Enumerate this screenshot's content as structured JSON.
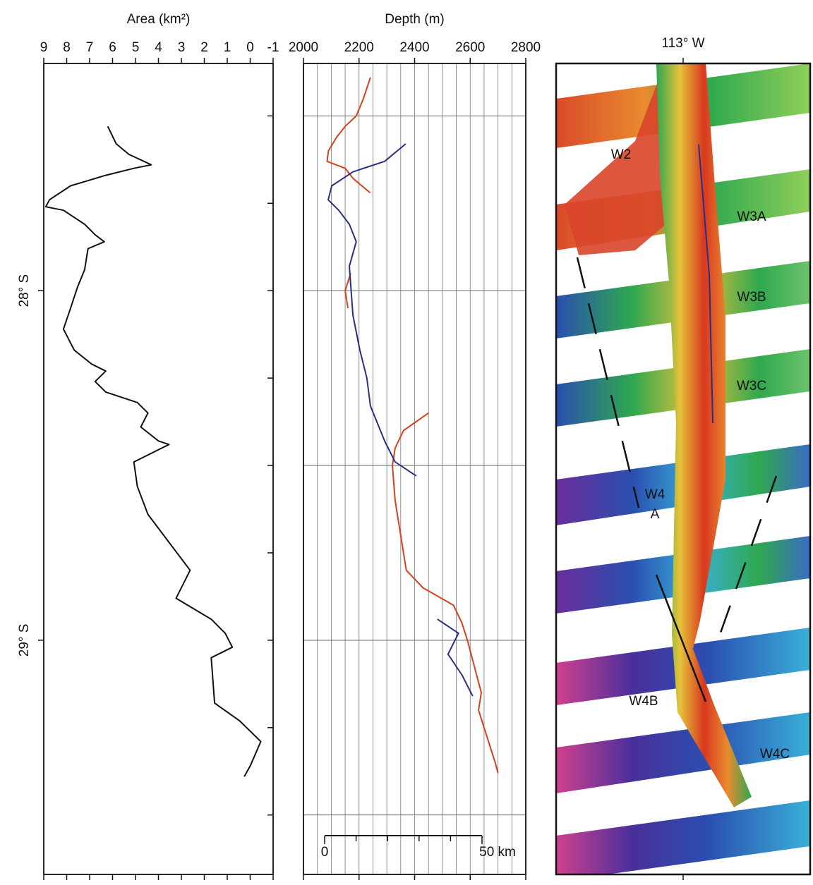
{
  "chart_data": [
    {
      "type": "profile",
      "title": "Area (km²)",
      "xlim": [
        9,
        -1
      ],
      "xticks": [
        9,
        8,
        7,
        6,
        5,
        4,
        3,
        2,
        1,
        0,
        -1
      ],
      "ylim": [
        27.35,
        29.67
      ],
      "yticks": [
        {
          "value": 28,
          "label": "28° S"
        },
        {
          "value": 29,
          "label": "29° S"
        }
      ],
      "yminor_ticks": [
        27.5,
        27.75,
        28,
        28.25,
        28.5,
        28.75,
        29,
        29.25,
        29.5
      ],
      "series": [
        {
          "color": "#111111",
          "lat": [
            27.53,
            27.58,
            27.61,
            27.64,
            27.65,
            27.67,
            27.7,
            27.74,
            27.76,
            27.77,
            27.81,
            27.84,
            27.86,
            27.88,
            27.94,
            27.99,
            28.05,
            28.11,
            28.17,
            28.21,
            28.23,
            28.26,
            28.29,
            28.32,
            28.35,
            28.39,
            28.43,
            28.44,
            28.49,
            28.56,
            28.64,
            28.72,
            28.8,
            28.88,
            28.94,
            28.98,
            29.02,
            29.05,
            29.18,
            29.23,
            29.26,
            29.29,
            29.36,
            29.39
          ],
          "values": [
            6.21,
            5.84,
            5.29,
            4.31,
            5.07,
            6.3,
            7.83,
            8.75,
            8.91,
            8.14,
            7.22,
            6.76,
            6.36,
            7.07,
            7.22,
            7.53,
            7.83,
            8.14,
            7.67,
            6.91,
            6.3,
            6.76,
            6.3,
            4.92,
            4.46,
            4.77,
            4.0,
            3.54,
            5.07,
            4.92,
            4.46,
            3.54,
            2.62,
            3.23,
            1.7,
            1.09,
            0.78,
            1.7,
            1.55,
            0.47,
            0.0,
            -0.46,
            0.0,
            0.26
          ]
        }
      ]
    },
    {
      "type": "profile",
      "title": "Depth (m)",
      "xlim": [
        2000,
        2800
      ],
      "xticks": [
        2000,
        2200,
        2400,
        2600,
        2800
      ],
      "xminor_ticks": [
        2050,
        2100,
        2150,
        2250,
        2300,
        2350,
        2450,
        2500,
        2550,
        2650,
        2700,
        2750
      ],
      "ylim": [
        27.35,
        29.67
      ],
      "ygrid": [
        27.5,
        28,
        28.5,
        29,
        29.5
      ],
      "scale_bar": [
        "0",
        "50 km"
      ],
      "series": [
        {
          "color": "#d8401c",
          "lat": [
            27.39,
            27.45,
            27.5,
            27.53,
            27.56,
            27.6,
            27.63,
            27.65,
            27.68,
            27.72,
            null,
            27.95,
            28.0,
            28.05,
            null,
            28.35,
            28.4,
            28.45,
            28.5,
            28.6,
            28.7,
            28.8,
            28.85,
            28.9,
            28.95,
            29.0,
            29.15,
            29.2,
            29.25,
            29.3,
            29.35,
            29.38
          ],
          "values": [
            2241,
            2216,
            2190,
            2150,
            2120,
            2090,
            2085,
            2150,
            2180,
            2240,
            null,
            2170,
            2150,
            2160,
            null,
            2450,
            2360,
            2330,
            2320,
            2330,
            2350,
            2370,
            2430,
            2540,
            2570,
            2590,
            2640,
            2630,
            2650,
            2670,
            2690,
            2700
          ]
        },
        {
          "color": "#2a2f86",
          "lat": [
            27.58,
            27.63,
            27.66,
            27.7,
            27.74,
            27.77,
            27.81,
            27.86,
            27.93,
            28.07,
            28.17,
            28.25,
            28.33,
            28.43,
            28.49,
            28.53,
            null,
            28.94,
            28.98,
            29.04,
            29.1,
            29.16
          ],
          "values": [
            2368,
            2292,
            2178,
            2102,
            2089,
            2127,
            2165,
            2190,
            2165,
            2178,
            2203,
            2228,
            2241,
            2292,
            2330,
            2406,
            null,
            2482,
            2558,
            2520,
            2571,
            2609
          ]
        }
      ]
    },
    {
      "type": "map",
      "title": "113° W",
      "labels": [
        "W2",
        "W3A",
        "W3B",
        "W3C",
        "W4",
        "A",
        "W4B",
        "W4C"
      ]
    }
  ]
}
